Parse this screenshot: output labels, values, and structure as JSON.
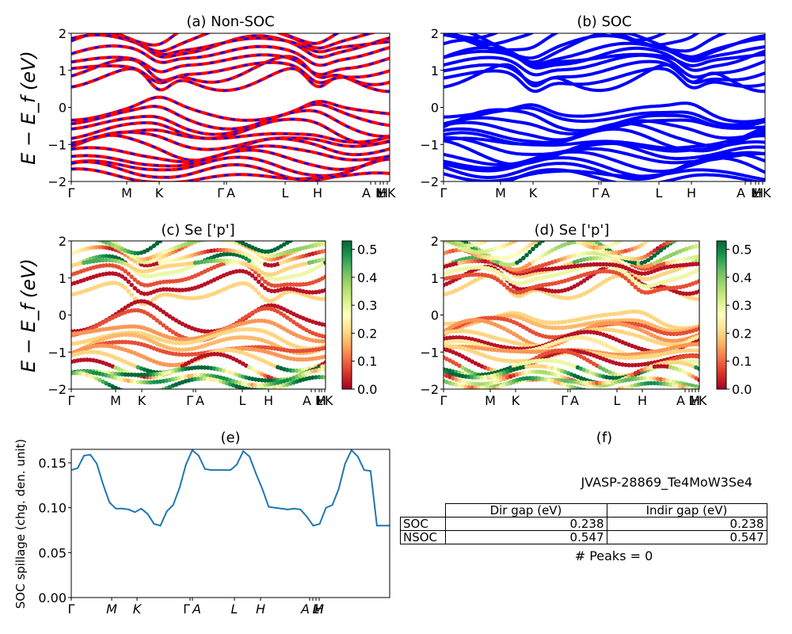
{
  "chart_data": [
    {
      "id": "a",
      "type": "line",
      "title": "(a) Non-SOC",
      "ylabel": "E − E_f (eV)",
      "ylim": [
        -2,
        2
      ],
      "yticks": [
        "−2",
        "−1",
        "0",
        "1",
        "2"
      ],
      "xticks": [
        "Γ",
        "M",
        "K",
        "Γ",
        "A",
        "L",
        "H",
        "A",
        "M",
        "L",
        "H",
        "K"
      ],
      "style": "bands red with blue dashes",
      "colors": {
        "band": "#ff0000",
        "dash": "#0000ff"
      }
    },
    {
      "id": "b",
      "type": "line",
      "title": "(b) SOC",
      "ylim": [
        -2,
        2
      ],
      "yticks": [
        "−2",
        "−1",
        "0",
        "1",
        "2"
      ],
      "xticks": [
        "Γ",
        "M",
        "K",
        "Γ",
        "A",
        "L",
        "H",
        "A",
        "M",
        "L",
        "H",
        "K"
      ],
      "colors": {
        "band": "#0000ff"
      }
    },
    {
      "id": "c",
      "type": "scatter",
      "title": "(c)  Se ['p']",
      "ylabel": "E − E_f (eV)",
      "ylim": [
        -2,
        2
      ],
      "yticks": [
        "−2",
        "−1",
        "0",
        "1",
        "2"
      ],
      "xticks": [
        "Γ",
        "M",
        "K",
        "Γ",
        "A",
        "L",
        "H",
        "A",
        "M",
        "L",
        "H",
        "K"
      ],
      "colorbar": {
        "ticks": [
          "0.0",
          "0.1",
          "0.2",
          "0.3",
          "0.4",
          "0.5"
        ],
        "range": [
          0,
          0.53
        ],
        "colormap": "RdYlGn"
      }
    },
    {
      "id": "d",
      "type": "scatter",
      "title": "(d) Se ['p']",
      "ylim": [
        -2,
        2
      ],
      "yticks": [
        "−2",
        "−1",
        "0",
        "1",
        "2"
      ],
      "xticks": [
        "Γ",
        "M",
        "K",
        "Γ",
        "A",
        "L",
        "H",
        "A",
        "M",
        "L",
        "H",
        "K"
      ],
      "colorbar": {
        "ticks": [
          "0.0",
          "0.1",
          "0.2",
          "0.3",
          "0.4",
          "0.5"
        ],
        "range": [
          0,
          0.53
        ],
        "colormap": "RdYlGn"
      }
    },
    {
      "id": "e",
      "type": "line",
      "title": "(e)",
      "ylabel": "SOC spillage (chg. den. unit)",
      "ylim": [
        0,
        0.165
      ],
      "yticks": [
        "0.00",
        "0.05",
        "0.10",
        "0.15"
      ],
      "xticks": [
        "Γ",
        "M",
        "K",
        "Γ",
        "A",
        "L",
        "H",
        "A",
        "M",
        "L",
        "H"
      ],
      "colors": {
        "line": "#1f77b4"
      },
      "series": [
        {
          "x": [
            0,
            0.02,
            0.04,
            0.06,
            0.08,
            0.1,
            0.12,
            0.14,
            0.16,
            0.18,
            0.2,
            0.22,
            0.24,
            0.26,
            0.28,
            0.3,
            0.32,
            0.34,
            0.36,
            0.38,
            0.4,
            0.42,
            0.44,
            0.46,
            0.48,
            0.5,
            0.52,
            0.54,
            0.56,
            0.58,
            0.6,
            0.62,
            0.64,
            0.66,
            0.68,
            0.7,
            0.72,
            0.74,
            0.76,
            0.78,
            0.8,
            0.82,
            0.84,
            0.86,
            0.88,
            0.9,
            0.92,
            0.94,
            0.96,
            0.98,
            1.0
          ],
          "y": [
            0.142,
            0.144,
            0.158,
            0.159,
            0.149,
            0.126,
            0.106,
            0.099,
            0.099,
            0.098,
            0.095,
            0.099,
            0.093,
            0.082,
            0.08,
            0.096,
            0.103,
            0.122,
            0.148,
            0.164,
            0.158,
            0.143,
            0.142,
            0.142,
            0.142,
            0.142,
            0.148,
            0.163,
            0.157,
            0.138,
            0.121,
            0.101,
            0.1,
            0.099,
            0.098,
            0.099,
            0.098,
            0.09,
            0.08,
            0.082,
            0.1,
            0.103,
            0.121,
            0.149,
            0.164,
            0.157,
            0.142,
            0.141,
            0.08,
            0.08,
            0.08
          ]
        }
      ]
    },
    {
      "id": "f",
      "type": "table",
      "title": "(f)",
      "subtitle": "JVASP-28869_Te4MoW3Se4",
      "columns": [
        "Dir gap (eV)",
        "Indir gap (eV)"
      ],
      "rows": [
        {
          "label": "SOC",
          "values": [
            "0.238",
            "0.238"
          ]
        },
        {
          "label": "NSOC",
          "values": [
            "0.547",
            "0.547"
          ]
        }
      ],
      "footer": "# Peaks = 0"
    }
  ]
}
